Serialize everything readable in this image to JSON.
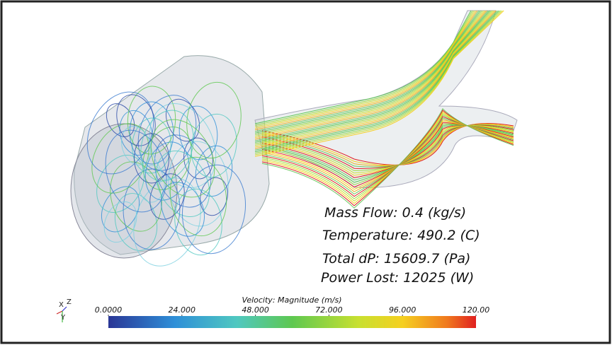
{
  "annotations": {
    "mass_flow": "Mass Flow: 0.4 (kg/s)",
    "temperature": "Temperature: 490.2 (C)",
    "total_dp": "Total dP: 15609.7 (Pa)",
    "power_lost": "Power Lost: 12025 (W)"
  },
  "triad": {
    "x": "X",
    "z": "Z",
    "y": "Y"
  },
  "colorbar": {
    "title": "Velocity: Magnitude (m/s)",
    "range": [
      0,
      120
    ],
    "ticks": [
      {
        "value": 0,
        "label": "0.0000"
      },
      {
        "value": 24,
        "label": "24.000"
      },
      {
        "value": 48,
        "label": "48.000"
      },
      {
        "value": 72,
        "label": "72.000"
      },
      {
        "value": 96,
        "label": "96.000"
      },
      {
        "value": 120,
        "label": "120.00"
      }
    ]
  }
}
